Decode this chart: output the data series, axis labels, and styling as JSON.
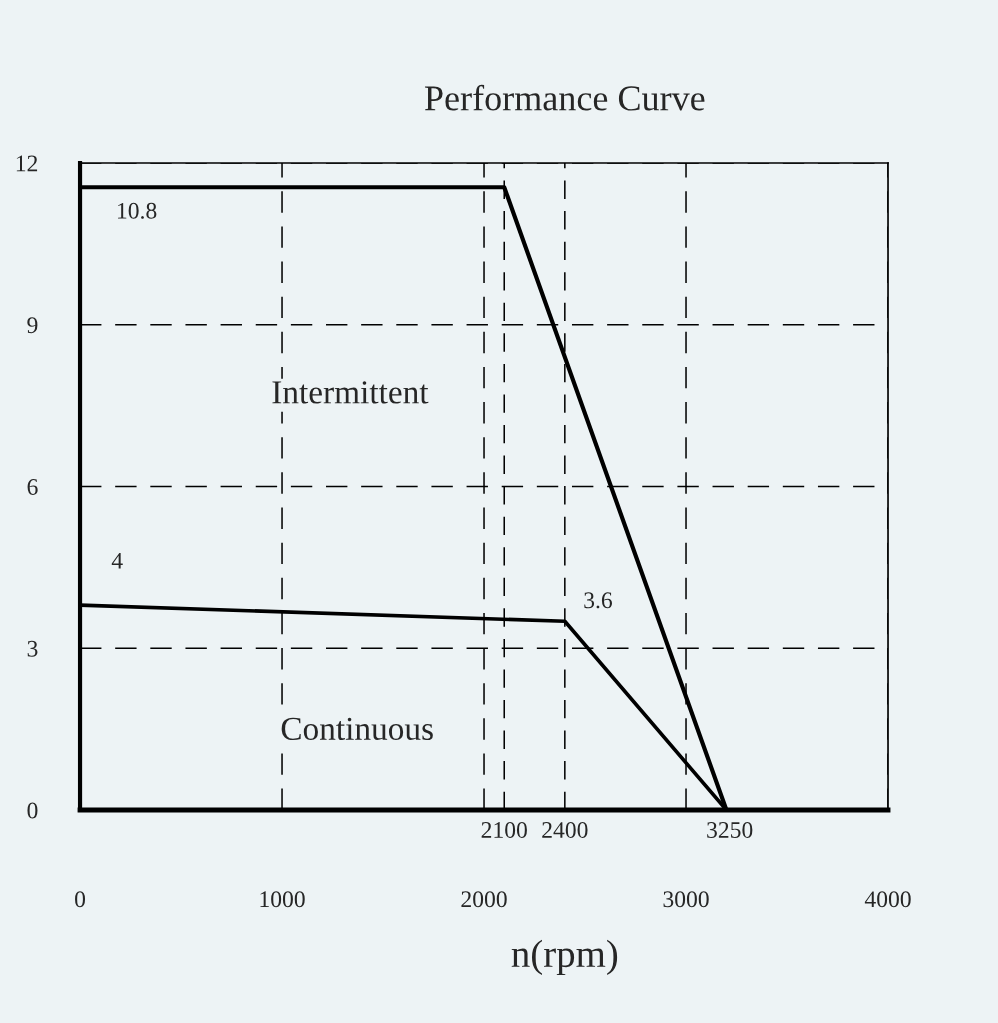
{
  "chart_data": {
    "type": "line",
    "title": "Performance Curve",
    "xlabel": "n(rpm)",
    "series": [
      {
        "color": "#000000",
        "x": [
          0,
          2100,
          3200
        ],
        "values": [
          11.55,
          11.55,
          0
        ]
      },
      {
        "color": "#000000",
        "x": [
          0,
          2400,
          3200
        ],
        "values": [
          3.8,
          3.5,
          0
        ]
      }
    ],
    "xlim": [
      0,
      4000
    ],
    "ylim": [
      0,
      12
    ],
    "xticks": [
      0,
      1000,
      2000,
      3000,
      4000
    ],
    "yticks": [
      0,
      3,
      6,
      9,
      12
    ],
    "grid": true,
    "line_style": "solid",
    "marker": "none",
    "ref_lines": [
      {
        "axis": "x",
        "value": 2100,
        "label": "2100",
        "line_style": "dashed",
        "color": "#000000"
      },
      {
        "axis": "x",
        "value": 2400,
        "label": "2400",
        "line_style": "dashed",
        "color": "#000000"
      }
    ],
    "annotations": [
      "10.8",
      "Intermittent",
      "4",
      "3.6",
      "Continuous",
      "3250"
    ]
  }
}
